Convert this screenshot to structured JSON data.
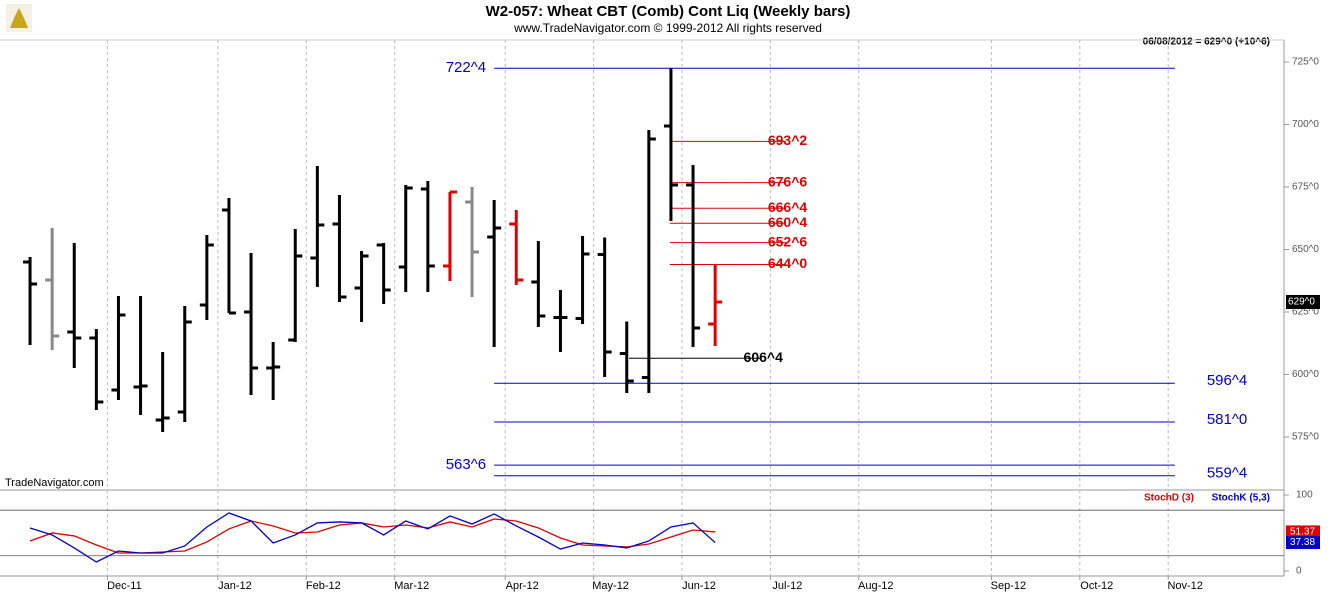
{
  "chart_data": [
    {
      "type": "ohlc",
      "title": "W2-057:  Wheat CBT (Comb) Cont Liq  (Weekly bars)",
      "subtitle": "www.TradeNavigator.com © 1999-2012 All rights reserved",
      "quote": "06/08/2012 = 629^0 (+10^6)",
      "watermark": "TradeNavigator.com",
      "xlim": [
        -1.36,
        56.74
      ],
      "xticks": [
        {
          "value": 3.5,
          "label": "Dec-11"
        },
        {
          "value": 8.5,
          "label": "Jan-12"
        },
        {
          "value": 12.5,
          "label": "Feb-12"
        },
        {
          "value": 16.5,
          "label": "Mar-12"
        },
        {
          "value": 21.5,
          "label": "Apr-12"
        },
        {
          "value": 25.5,
          "label": "May-12"
        },
        {
          "value": 29.5,
          "label": "Jun-12"
        },
        {
          "value": 33.5,
          "label": "Jul-12"
        },
        {
          "value": 37.5,
          "label": "Aug-12"
        },
        {
          "value": 43.5,
          "label": "Sep-12"
        },
        {
          "value": 47.5,
          "label": "Oct-12"
        },
        {
          "value": 51.5,
          "label": "Nov-12"
        }
      ],
      "ylim": [
        553.8,
        733.8
      ],
      "yticks": [
        {
          "value": 575,
          "label": "575^0"
        },
        {
          "value": 600,
          "label": "600^0"
        },
        {
          "value": 625,
          "label": "625^0"
        },
        {
          "value": 650,
          "label": "650^0"
        },
        {
          "value": 675,
          "label": "675^0"
        },
        {
          "value": 700,
          "label": "700^0"
        },
        {
          "value": 725,
          "label": "725^0"
        }
      ],
      "last_price": {
        "value": 629,
        "label": "629^0"
      },
      "open": [
        645,
        637.8,
        617,
        614.6,
        593.8,
        595,
        581.8,
        585,
        627.8,
        665.8,
        625,
        602.6,
        613.8,
        646.6,
        660.2,
        634.6,
        651.8,
        643,
        674.2,
        643.4,
        669,
        655,
        660.2,
        637,
        622.8,
        622.4,
        648,
        608.4,
        598.8,
        699.4,
        675.8,
        620.2
      ],
      "high": [
        647,
        658.6,
        652.6,
        618.2,
        631.4,
        631.4,
        609,
        627.4,
        655.8,
        670.6,
        648.6,
        613,
        658.2,
        683.4,
        671.8,
        649.4,
        652.6,
        675.8,
        677.4,
        673,
        675,
        669.8,
        665.8,
        653.4,
        633.8,
        655.4,
        654.8,
        621.2,
        697.8,
        722.5,
        683.8,
        644.2
      ],
      "low": [
        611.8,
        609.8,
        602.6,
        585.8,
        589.8,
        583.8,
        577,
        581,
        621.8,
        624.6,
        591.8,
        589.8,
        613,
        635,
        629,
        621,
        628.2,
        633,
        633,
        637.4,
        631,
        611,
        635.8,
        619,
        609,
        620.2,
        599,
        592.6,
        592.6,
        661.4,
        611,
        611.4
      ],
      "close": [
        636.2,
        615.4,
        614.6,
        589,
        623.8,
        595.4,
        582.6,
        621,
        651.8,
        624.6,
        602.6,
        603,
        647.4,
        659.8,
        631,
        647.4,
        633.8,
        674.6,
        643.4,
        673,
        649,
        658.6,
        637.8,
        623.4,
        622.8,
        648.2,
        609,
        597.4,
        694.2,
        675.8,
        618.6,
        629
      ],
      "colors": [
        "#000000",
        "#888888",
        "#000000",
        "#000000",
        "#000000",
        "#000000",
        "#000000",
        "#000000",
        "#000000",
        "#000000",
        "#000000",
        "#000000",
        "#000000",
        "#000000",
        "#000000",
        "#000000",
        "#000000",
        "#000000",
        "#000000",
        "#e00000",
        "#888888",
        "#000000",
        "#e00000",
        "#000000",
        "#000000",
        "#000000",
        "#000000",
        "#000000",
        "#000000",
        "#000000",
        "#000000",
        "#e00000"
      ],
      "levels": [
        {
          "value": 722.5,
          "label": "722^4",
          "color": "#0000cc",
          "label_side": "left"
        },
        {
          "value": 596.5,
          "label": "596^4",
          "color": "#0000cc",
          "label_side": "right"
        },
        {
          "value": 581,
          "label": "581^0",
          "color": "#0000cc",
          "label_side": "right"
        },
        {
          "value": 563.75,
          "label": "563^6",
          "color": "#0000cc",
          "label_side": "left"
        },
        {
          "value": 559.5,
          "label": "559^4",
          "color": "#0000cc",
          "label_side": "right"
        }
      ],
      "retracements": [
        {
          "value": 693.25,
          "label": "693^2",
          "color": "#e00000"
        },
        {
          "value": 676.75,
          "label": "676^6",
          "color": "#e00000"
        },
        {
          "value": 666.5,
          "label": "666^4",
          "color": "#e00000"
        },
        {
          "value": 660.5,
          "label": "660^4",
          "color": "#e00000"
        },
        {
          "value": 652.75,
          "label": "652^6",
          "color": "#e00000"
        },
        {
          "value": 644,
          "label": "644^0",
          "color": "#e00000"
        },
        {
          "value": 606.5,
          "label": "606^4",
          "color": "#000000"
        }
      ]
    },
    {
      "type": "line",
      "ylim": [
        -6.6,
        103.9
      ],
      "yticks": [
        0,
        100
      ],
      "hlines": [
        20,
        80
      ],
      "series": [
        {
          "name": "StochD (3)",
          "color": "#e00000",
          "values": [
            39.5,
            50,
            46.1,
            34.2,
            23.7,
            23.7,
            25,
            26.3,
            38.2,
            55.3,
            65.8,
            59.2,
            50,
            51.3,
            60.5,
            63.2,
            57.9,
            60.5,
            56.6,
            64.5,
            57.9,
            68.4,
            65.8,
            56.6,
            43.4,
            34.2,
            32.9,
            31.6,
            35.5,
            44.7,
            53.9,
            51.37
          ]
        },
        {
          "name": "StochK (5,3)",
          "color": "#0000cc",
          "values": [
            56.6,
            47.4,
            30.3,
            11.8,
            26.3,
            23.7,
            23.7,
            32.9,
            57.9,
            76.3,
            65.8,
            36.8,
            47.4,
            63.2,
            64.5,
            63.2,
            47.4,
            65.8,
            55.3,
            72.4,
            61.8,
            75,
            59.2,
            44.7,
            28.9,
            36.8,
            34.2,
            30.3,
            39.5,
            57.9,
            63.2,
            37.38
          ]
        }
      ]
    }
  ]
}
